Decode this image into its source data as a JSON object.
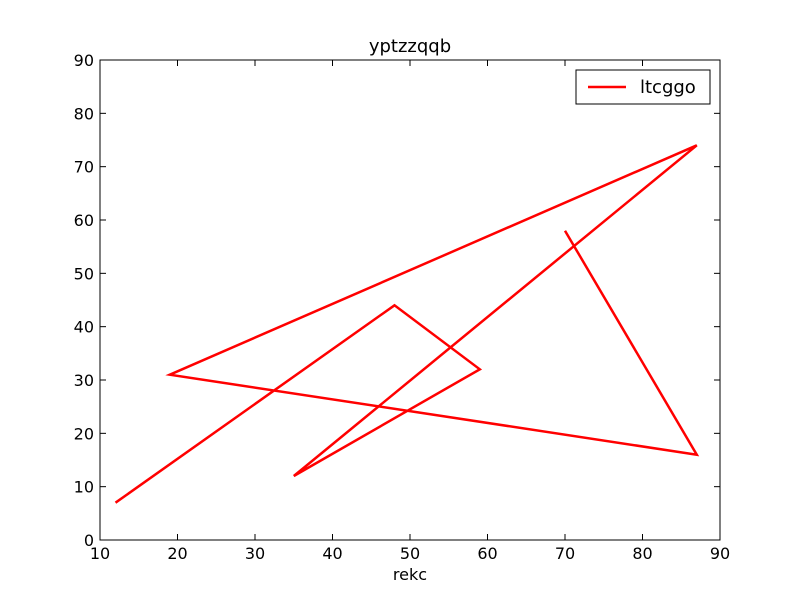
{
  "chart_data": {
    "type": "line",
    "title": "yptzzqqb",
    "xlabel": "rekc",
    "ylabel": "",
    "xlim": [
      10,
      90
    ],
    "ylim": [
      0,
      90
    ],
    "xticks": [
      10,
      20,
      30,
      40,
      50,
      60,
      70,
      80,
      90
    ],
    "yticks": [
      0,
      10,
      20,
      30,
      40,
      50,
      60,
      70,
      80,
      90
    ],
    "grid": false,
    "legend_position": "top-right",
    "series": [
      {
        "name": "ltcggo",
        "color": "#ff0000",
        "x": [
          12,
          48,
          59,
          35,
          87,
          19,
          87,
          70
        ],
        "y": [
          7,
          44,
          32,
          12,
          74,
          31,
          16,
          58
        ]
      }
    ]
  }
}
